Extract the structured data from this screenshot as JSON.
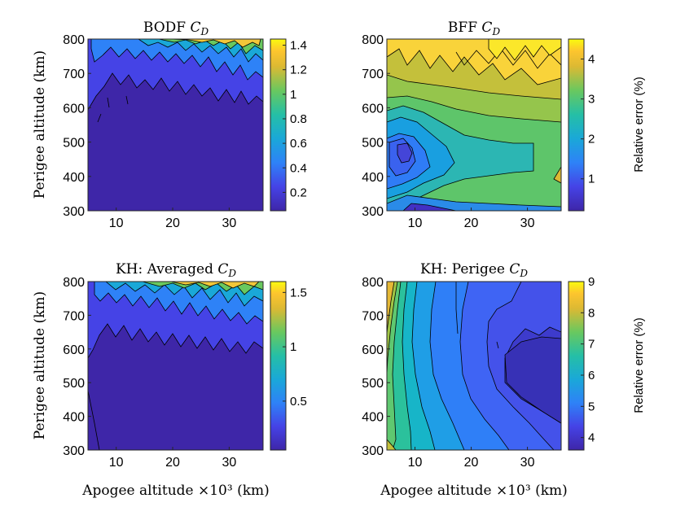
{
  "figure": {
    "shared_xlabel": "Apogee altitude ×10³ (km)",
    "shared_ylabel": "Perigee altitude (km)",
    "colorbar_label": "Relative error (%)"
  },
  "chart_data": [
    {
      "type": "heatmap",
      "title": "BODF C_D",
      "title_text": "BODF",
      "title_math": "C",
      "title_sub": "D",
      "xlabel": "",
      "ylabel": "Perigee altitude (km)",
      "x_ticks": [
        10,
        20,
        30
      ],
      "y_ticks": [
        300,
        400,
        500,
        600,
        700,
        800
      ],
      "xlim": [
        5,
        36
      ],
      "ylim": [
        300,
        800
      ],
      "colorbar": {
        "ticks": [
          "0.2",
          "0.4",
          "0.6",
          "0.8",
          "1",
          "1.2",
          "1.4"
        ],
        "tick_values": [
          0.2,
          0.4,
          0.6,
          0.8,
          1.0,
          1.2,
          1.4
        ],
        "range": [
          0.05,
          1.45
        ],
        "label": ""
      },
      "description_values": {
        "low_region_value": 0.1,
        "high_region_max": 1.4
      }
    },
    {
      "type": "heatmap",
      "title": "BFF C_D",
      "title_text": "BFF",
      "title_math": "C",
      "title_sub": "D",
      "xlabel": "",
      "ylabel": "",
      "x_ticks": [
        10,
        20,
        30
      ],
      "y_ticks": [
        300,
        400,
        500,
        600,
        700,
        800
      ],
      "xlim": [
        5,
        36
      ],
      "ylim": [
        300,
        800
      ],
      "colorbar": {
        "ticks": [
          "1",
          "2",
          "3",
          "4"
        ],
        "tick_values": [
          1,
          2,
          3,
          4
        ],
        "range": [
          0.2,
          4.5
        ],
        "label": "Relative error (%)"
      },
      "description_values": {
        "min": 0.3,
        "max": 4.5
      }
    },
    {
      "type": "heatmap",
      "title": "KH: Averaged C_D",
      "title_text": "KH: Averaged",
      "title_math": "C",
      "title_sub": "D",
      "xlabel": "Apogee altitude ×10³ (km)",
      "ylabel": "Perigee altitude (km)",
      "x_ticks": [
        10,
        20,
        30
      ],
      "y_ticks": [
        300,
        400,
        500,
        600,
        700,
        800
      ],
      "xlim": [
        5,
        36
      ],
      "ylim": [
        300,
        800
      ],
      "colorbar": {
        "ticks": [
          "0.5",
          "1",
          "1.5"
        ],
        "tick_values": [
          0.5,
          1.0,
          1.5
        ],
        "range": [
          0.05,
          1.6
        ],
        "label": ""
      },
      "description_values": {
        "low_region_value": 0.1,
        "high_region_max": 1.6
      }
    },
    {
      "type": "heatmap",
      "title": "KH: Perigee C_D",
      "title_text": "KH: Perigee",
      "title_math": "C",
      "title_sub": "D",
      "xlabel": "Apogee altitude ×10³ (km)",
      "ylabel": "",
      "x_ticks": [
        10,
        20,
        30
      ],
      "y_ticks": [
        300,
        400,
        500,
        600,
        700,
        800
      ],
      "xlim": [
        5,
        36
      ],
      "ylim": [
        300,
        800
      ],
      "colorbar": {
        "ticks": [
          "4",
          "5",
          "6",
          "7",
          "8",
          "9"
        ],
        "tick_values": [
          4,
          5,
          6,
          7,
          8,
          9
        ],
        "range": [
          3.6,
          9.0
        ],
        "label": "Relative error (%)"
      },
      "description_values": {
        "min": 3.6,
        "max": 9.0
      }
    }
  ]
}
